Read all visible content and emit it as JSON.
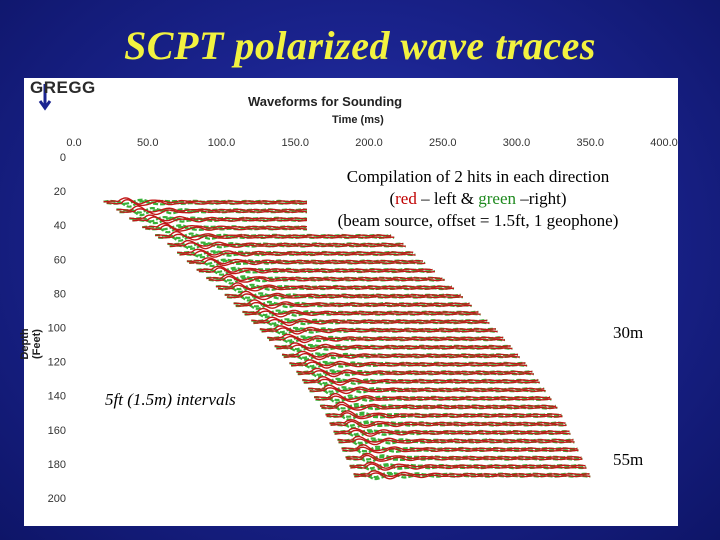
{
  "slide": {
    "title": "SCPT polarized wave traces"
  },
  "logo": {
    "text": "GREGG"
  },
  "chart_data": {
    "type": "line",
    "title": "Waveforms for Sounding",
    "xlabel": "Time (ms)",
    "ylabel": "Depth (Feet)",
    "xlim": [
      0,
      400
    ],
    "ylim": [
      0,
      200
    ],
    "y_inverted": true,
    "x_ticks": [
      "0.0",
      "50.0",
      "100.0",
      "150.0",
      "200.0",
      "250.0",
      "300.0",
      "350.0",
      "400.0"
    ],
    "y_ticks": [
      "0",
      "20",
      "40",
      "60",
      "80",
      "100",
      "120",
      "140",
      "160",
      "180",
      "200"
    ],
    "grid": false,
    "series": [
      {
        "name": "red",
        "color": "#c01818"
      },
      {
        "name": "green",
        "color": "#38b038"
      }
    ],
    "trace_depth_start_ft": 26,
    "trace_depth_end_ft": 187,
    "trace_interval_ft": 5,
    "first_arrival_ms": [
      {
        "depth": 26,
        "time": 30
      },
      {
        "depth": 50,
        "time": 72
      },
      {
        "depth": 75,
        "time": 105
      },
      {
        "depth": 100,
        "time": 135
      },
      {
        "depth": 125,
        "time": 160
      },
      {
        "depth": 150,
        "time": 180
      },
      {
        "depth": 187,
        "time": 200
      }
    ]
  },
  "annotations": {
    "compilation_line1": "Compilation of 2 hits in each direction",
    "line2_open": "(",
    "line2_red": "red",
    "line2_mid": " – left & ",
    "line2_green": "green",
    "line2_close": " –right)",
    "compilation_line3": "(beam source, offset = 1.5ft, 1 geophone)",
    "label_30m": "30m",
    "label_55m": "55m",
    "interval_label": "5ft (1.5m) intervals"
  }
}
